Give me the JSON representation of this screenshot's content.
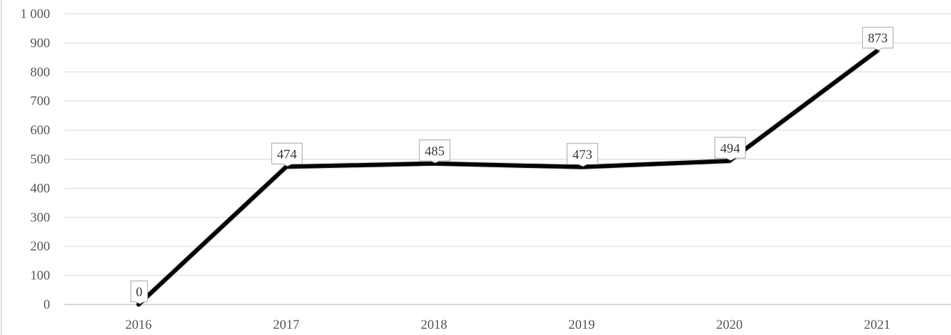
{
  "chart_data": {
    "type": "line",
    "categories": [
      "2016",
      "2017",
      "2018",
      "2019",
      "2020",
      "2021"
    ],
    "series": [
      {
        "values": [
          0,
          474,
          485,
          473,
          494,
          873
        ]
      }
    ],
    "y_ticks": [
      0,
      100,
      200,
      300,
      400,
      500,
      600,
      700,
      800,
      900,
      1000
    ],
    "y_tick_labels": [
      "0",
      "100",
      "200",
      "300",
      "400",
      "500",
      "600",
      "700",
      "800",
      "900",
      "1 000"
    ],
    "ylim": [
      0,
      1000
    ],
    "grid": true,
    "legend": "none",
    "data_labels": [
      "0",
      "474",
      "485",
      "473",
      "494",
      "873"
    ],
    "colors": {
      "line": "#000000",
      "grid": "#d9d9d9",
      "axis": "#bfbfbf",
      "label_box_border": "#a6a6a6"
    }
  }
}
